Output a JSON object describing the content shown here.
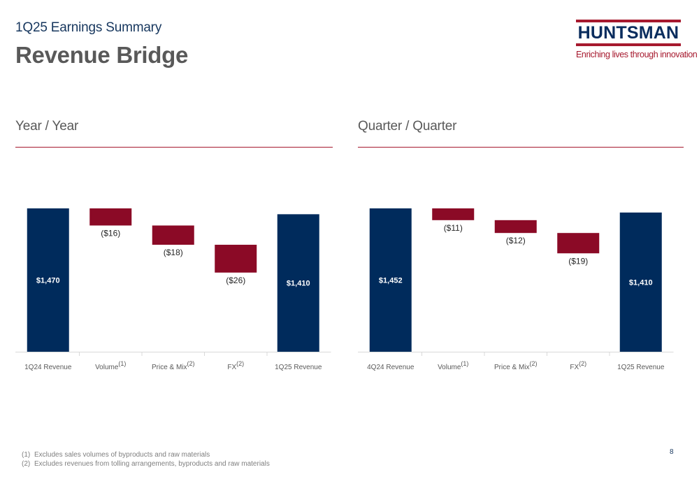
{
  "header": {
    "subtitle": "1Q25 Earnings Summary",
    "title": "Revenue Bridge"
  },
  "logo": {
    "name": "HUNTSMAN",
    "tagline": "Enriching lives through innovation"
  },
  "colors": {
    "navy": "#002b5c",
    "maroon": "#8b0a26",
    "rule": "#a6192e",
    "text_gray": "#595959"
  },
  "chart_data": [
    {
      "type": "bar",
      "title": "Year / Year",
      "categories": [
        "1Q24 Revenue",
        "Volume",
        "Price & Mix",
        "FX",
        "1Q25 Revenue"
      ],
      "category_footnotes": [
        "",
        "(1)",
        "(2)",
        "(2)",
        ""
      ],
      "values": [
        1470,
        -16,
        -18,
        -26,
        1410
      ],
      "data_labels": [
        "$1,470",
        "($16)",
        "($18)",
        "($26)",
        "$1,410"
      ],
      "bar_kinds": [
        "total",
        "delta",
        "delta",
        "delta",
        "total"
      ],
      "ylim": [
        0,
        1470
      ]
    },
    {
      "type": "bar",
      "title": "Quarter / Quarter",
      "categories": [
        "4Q24 Revenue",
        "Volume",
        "Price & Mix",
        "FX",
        "1Q25 Revenue"
      ],
      "category_footnotes": [
        "",
        "(1)",
        "(2)",
        "(2)",
        ""
      ],
      "values": [
        1452,
        -11,
        -12,
        -19,
        1410
      ],
      "data_labels": [
        "$1,452",
        "($11)",
        "($12)",
        "($19)",
        "$1,410"
      ],
      "bar_kinds": [
        "total",
        "delta",
        "delta",
        "delta",
        "total"
      ],
      "ylim": [
        0,
        1452
      ]
    }
  ],
  "footnotes": [
    {
      "num": "(1)",
      "text": "Excludes sales volumes of byproducts and raw materials"
    },
    {
      "num": "(2)",
      "text": "Excludes revenues from tolling arrangements, byproducts and raw materials"
    }
  ],
  "page_number": "8"
}
